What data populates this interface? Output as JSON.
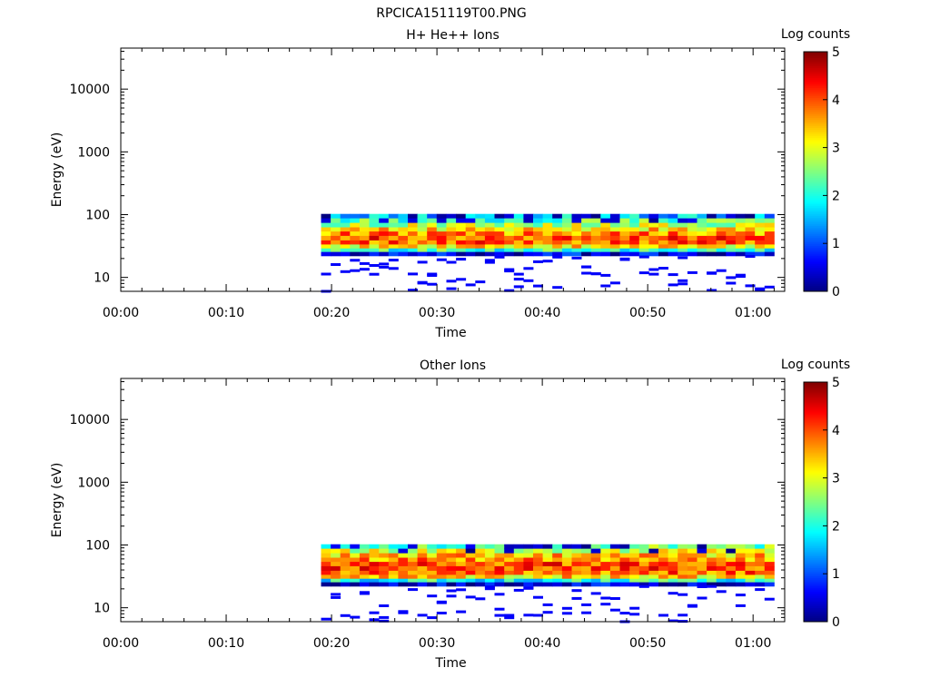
{
  "figure_title": "RPCICA151119T00.PNG",
  "colormap": [
    "#000080",
    "#0000ff",
    "#0080ff",
    "#00ffff",
    "#80ff80",
    "#ffff00",
    "#ff8000",
    "#ff0000",
    "#800000"
  ],
  "chart_data": [
    {
      "type": "heatmap",
      "title": "H+ He++ Ions",
      "xlabel": "Time",
      "ylabel": "Energy (eV)",
      "yscale": "log",
      "xlim": [
        "00:00",
        "01:03"
      ],
      "ylim": [
        6,
        45000
      ],
      "x_ticks": [
        "00:00",
        "00:10",
        "00:20",
        "00:30",
        "00:40",
        "00:50",
        "01:00"
      ],
      "y_ticks": [
        "10",
        "100",
        "1000",
        "10000"
      ],
      "colorbar": {
        "label": "Log counts",
        "range": [
          0,
          5
        ],
        "ticks": [
          "0",
          "1",
          "2",
          "3",
          "4",
          "5"
        ]
      },
      "data_time_range": [
        "00:19",
        "01:02"
      ],
      "data_energy_range": [
        6,
        95
      ],
      "energy_profile": [
        {
          "energy": 95,
          "log_counts": 1.6
        },
        {
          "energy": 80,
          "log_counts": 2.2
        },
        {
          "energy": 68,
          "log_counts": 2.8
        },
        {
          "energy": 58,
          "log_counts": 3.3
        },
        {
          "energy": 50,
          "log_counts": 3.7
        },
        {
          "energy": 42,
          "log_counts": 4.0
        },
        {
          "energy": 36,
          "log_counts": 3.9
        },
        {
          "energy": 31,
          "log_counts": 3.2
        },
        {
          "energy": 27,
          "log_counts": 2.2
        },
        {
          "energy": 24,
          "log_counts": 0.5
        }
      ]
    },
    {
      "type": "heatmap",
      "title": "Other Ions",
      "xlabel": "Time",
      "ylabel": "Energy (eV)",
      "yscale": "log",
      "xlim": [
        "00:00",
        "01:03"
      ],
      "ylim": [
        6,
        45000
      ],
      "x_ticks": [
        "00:00",
        "00:10",
        "00:20",
        "00:30",
        "00:40",
        "00:50",
        "01:00"
      ],
      "y_ticks": [
        "10",
        "100",
        "1000",
        "10000"
      ],
      "colorbar": {
        "label": "Log counts",
        "range": [
          0,
          5
        ],
        "ticks": [
          "0",
          "1",
          "2",
          "3",
          "4",
          "5"
        ]
      },
      "data_time_range": [
        "00:19",
        "01:02"
      ],
      "data_energy_range": [
        6,
        95
      ],
      "energy_profile": [
        {
          "energy": 95,
          "log_counts": 2.4
        },
        {
          "energy": 80,
          "log_counts": 2.9
        },
        {
          "energy": 68,
          "log_counts": 3.4
        },
        {
          "energy": 58,
          "log_counts": 3.7
        },
        {
          "energy": 50,
          "log_counts": 4.0
        },
        {
          "energy": 42,
          "log_counts": 4.1
        },
        {
          "energy": 36,
          "log_counts": 3.9
        },
        {
          "energy": 31,
          "log_counts": 3.3
        },
        {
          "energy": 27,
          "log_counts": 2.0
        },
        {
          "energy": 24,
          "log_counts": 0.4
        }
      ]
    }
  ]
}
